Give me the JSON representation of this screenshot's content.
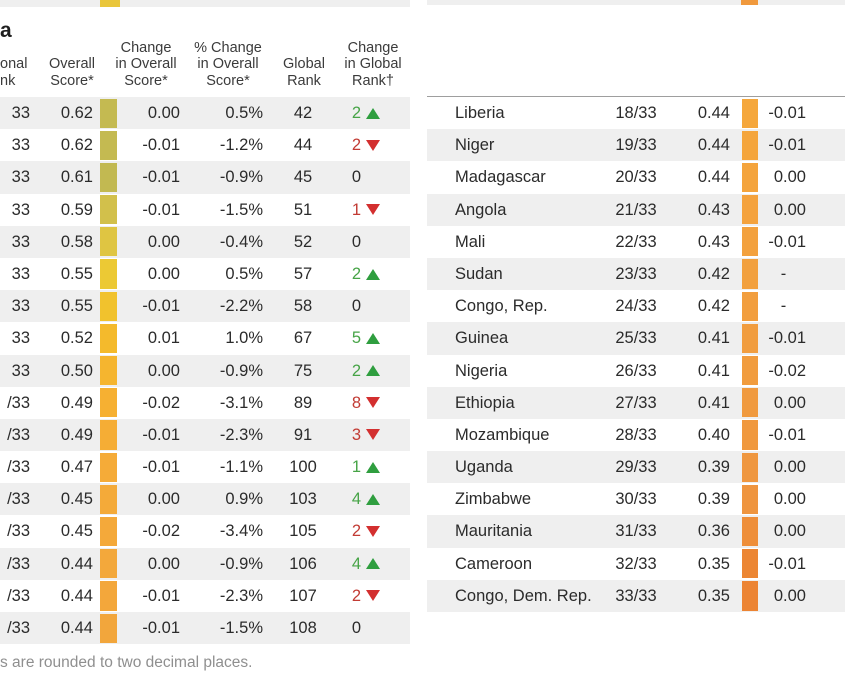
{
  "page": {
    "title_fragment": "a",
    "footnote_fragment": "s are rounded to two decimal places."
  },
  "colors": {
    "stripe": "#efefef",
    "text": "#2b2b2b",
    "header_text": "#3b3b3b",
    "green_text": "#47a447",
    "green_arrow": "#2f9e3f",
    "red_text": "#c23b34",
    "red_arrow": "#d32f2f",
    "rule": "#9e9e9e",
    "footnote": "#8f8f8f",
    "left_top_remnant_swatch": "#e9c63b",
    "right_top_remnant_swatch": "#f0993d",
    "top_strip_bg": "#efefef"
  },
  "left_table": {
    "headers": [
      {
        "id": "col-regional-rank",
        "lines": [
          "onal",
          "nk"
        ]
      },
      {
        "id": "col-overall-score",
        "lines": [
          "Overall",
          "Score*"
        ]
      },
      {
        "id": "col-change-overall",
        "lines": [
          "Change",
          "in Overall",
          "Score*"
        ]
      },
      {
        "id": "col-pct-change-overall",
        "lines": [
          "% Change",
          "in Overall",
          "Score*"
        ]
      },
      {
        "id": "col-global-rank",
        "lines": [
          "Global",
          "Rank"
        ]
      },
      {
        "id": "col-change-global",
        "lines": [
          "Change",
          "in Global",
          "Rank†"
        ]
      }
    ],
    "rows": [
      {
        "rank": "33",
        "score": "0.62",
        "swatch": "#c4ba51",
        "change": "0.00",
        "pct": "0.5%",
        "global": "42",
        "delta": "2",
        "dir": "up"
      },
      {
        "rank": "33",
        "score": "0.62",
        "swatch": "#c4ba51",
        "change": "-0.01",
        "pct": "-1.2%",
        "global": "44",
        "delta": "2",
        "dir": "down"
      },
      {
        "rank": "33",
        "score": "0.61",
        "swatch": "#c2b951",
        "change": "-0.01",
        "pct": "-0.9%",
        "global": "45",
        "delta": "0",
        "dir": "none"
      },
      {
        "rank": "33",
        "score": "0.59",
        "swatch": "#d2c04b",
        "change": "-0.01",
        "pct": "-1.5%",
        "global": "51",
        "delta": "1",
        "dir": "down"
      },
      {
        "rank": "33",
        "score": "0.58",
        "swatch": "#dfc542",
        "change": "0.00",
        "pct": "-0.4%",
        "global": "52",
        "delta": "0",
        "dir": "none"
      },
      {
        "rank": "33",
        "score": "0.55",
        "swatch": "#ecc934",
        "change": "0.00",
        "pct": "0.5%",
        "global": "57",
        "delta": "2",
        "dir": "up"
      },
      {
        "rank": "33",
        "score": "0.55",
        "swatch": "#f1c22d",
        "change": "-0.01",
        "pct": "-2.2%",
        "global": "58",
        "delta": "0",
        "dir": "none"
      },
      {
        "rank": "33",
        "score": "0.52",
        "swatch": "#f4ba2c",
        "change": "0.01",
        "pct": "1.0%",
        "global": "67",
        "delta": "5",
        "dir": "up"
      },
      {
        "rank": "33",
        "score": "0.50",
        "swatch": "#f5b52f",
        "change": "0.00",
        "pct": "-0.9%",
        "global": "75",
        "delta": "2",
        "dir": "up"
      },
      {
        "rank": "/33",
        "score": "0.49",
        "swatch": "#f6b032",
        "change": "-0.02",
        "pct": "-3.1%",
        "global": "89",
        "delta": "8",
        "dir": "down"
      },
      {
        "rank": "/33",
        "score": "0.49",
        "swatch": "#f5ad35",
        "change": "-0.01",
        "pct": "-2.3%",
        "global": "91",
        "delta": "3",
        "dir": "down"
      },
      {
        "rank": "/33",
        "score": "0.47",
        "swatch": "#f5ab38",
        "change": "-0.01",
        "pct": "-1.1%",
        "global": "100",
        "delta": "1",
        "dir": "up"
      },
      {
        "rank": "/33",
        "score": "0.45",
        "swatch": "#f4aa39",
        "change": "0.00",
        "pct": "0.9%",
        "global": "103",
        "delta": "4",
        "dir": "up"
      },
      {
        "rank": "/33",
        "score": "0.45",
        "swatch": "#f4a93a",
        "change": "-0.02",
        "pct": "-3.4%",
        "global": "105",
        "delta": "2",
        "dir": "down"
      },
      {
        "rank": "/33",
        "score": "0.44",
        "swatch": "#f3a83b",
        "change": "0.00",
        "pct": "-0.9%",
        "global": "106",
        "delta": "4",
        "dir": "up"
      },
      {
        "rank": "/33",
        "score": "0.44",
        "swatch": "#f3a73b",
        "change": "-0.01",
        "pct": "-2.3%",
        "global": "107",
        "delta": "2",
        "dir": "down"
      },
      {
        "rank": "/33",
        "score": "0.44",
        "swatch": "#f2a63c",
        "change": "-0.01",
        "pct": "-1.5%",
        "global": "108",
        "delta": "0",
        "dir": "none"
      }
    ]
  },
  "right_table": {
    "rows": [
      {
        "country": "Liberia",
        "rank": "18/33",
        "score": "0.44",
        "swatch": "#f5a73c",
        "change": "-0.01"
      },
      {
        "country": "Niger",
        "rank": "19/33",
        "score": "0.44",
        "swatch": "#f4a53c",
        "change": "-0.01"
      },
      {
        "country": "Madagascar",
        "rank": "20/33",
        "score": "0.44",
        "swatch": "#f4a43d",
        "change": "0.00"
      },
      {
        "country": "Angola",
        "rank": "21/33",
        "score": "0.43",
        "swatch": "#f4a23d",
        "change": "0.00"
      },
      {
        "country": "Mali",
        "rank": "22/33",
        "score": "0.43",
        "swatch": "#f3a13e",
        "change": "-0.01"
      },
      {
        "country": "Sudan",
        "rank": "23/33",
        "score": "0.42",
        "swatch": "#f2a03e",
        "change": "-"
      },
      {
        "country": "Congo, Rep.",
        "rank": "24/33",
        "score": "0.42",
        "swatch": "#f29e3e",
        "change": "-"
      },
      {
        "country": "Guinea",
        "rank": "25/33",
        "score": "0.41",
        "swatch": "#f19d3f",
        "change": "-0.01"
      },
      {
        "country": "Nigeria",
        "rank": "26/33",
        "score": "0.41",
        "swatch": "#f19c3e",
        "change": "-0.02"
      },
      {
        "country": "Ethiopia",
        "rank": "27/33",
        "score": "0.41",
        "swatch": "#f09a3f",
        "change": "0.00"
      },
      {
        "country": "Mozambique",
        "rank": "28/33",
        "score": "0.40",
        "swatch": "#f0993f",
        "change": "-0.01"
      },
      {
        "country": "Uganda",
        "rank": "29/33",
        "score": "0.39",
        "swatch": "#ef9740",
        "change": "0.00"
      },
      {
        "country": "Zimbabwe",
        "rank": "30/33",
        "score": "0.39",
        "swatch": "#ef953f",
        "change": "0.00"
      },
      {
        "country": "Mauritania",
        "rank": "31/33",
        "score": "0.36",
        "swatch": "#ee8e39",
        "change": "0.00"
      },
      {
        "country": "Cameroon",
        "rank": "32/33",
        "score": "0.35",
        "swatch": "#ec8633",
        "change": "-0.01"
      },
      {
        "country": "Congo, Dem. Rep.",
        "rank": "33/33",
        "score": "0.35",
        "swatch": "#ec8433",
        "change": "0.00"
      }
    ]
  }
}
